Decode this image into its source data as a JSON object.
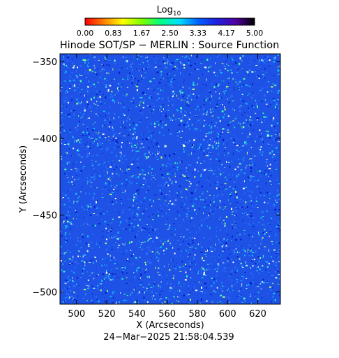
{
  "chart_data": {
    "type": "heatmap",
    "title": "Hinode SOT/SP − MERLIN : Source Function",
    "xlabel": "X (Arcseconds)",
    "ylabel": "Y (Arcseconds)",
    "timestamp": "24−Mar−2025 21:58:04.539",
    "xlim": [
      489,
      635
    ],
    "ylim": [
      -508,
      -345
    ],
    "x_ticks": [
      500,
      520,
      540,
      560,
      580,
      600,
      620
    ],
    "y_ticks": [
      -350,
      -400,
      -450,
      -500
    ],
    "x_tick_labels": [
      "500",
      "520",
      "540",
      "560",
      "580",
      "600",
      "620"
    ],
    "y_tick_labels": [
      "−350",
      "−400",
      "−450",
      "−500"
    ],
    "colorbar": {
      "label_main": "Log",
      "label_sub": "10",
      "range": [
        0.0,
        5.0
      ],
      "ticks": [
        0.0,
        0.83,
        1.67,
        2.5,
        3.33,
        4.17,
        5.0
      ],
      "tick_labels": [
        "0.00",
        "0.83",
        "1.67",
        "2.50",
        "3.33",
        "4.17",
        "5.00"
      ],
      "colors": [
        "#ff0000",
        "#ff8000",
        "#ffff00",
        "#80ff00",
        "#00ff80",
        "#00e0ff",
        "#0060ff",
        "#2020e0",
        "#5000a0",
        "#000000"
      ]
    },
    "field": {
      "typical_value": 3.8,
      "min_value": 2.4,
      "max_value": 4.4,
      "base_color": "#1e52e6",
      "speckle_colors": [
        "#ffffff",
        "#a8ffd8",
        "#40ffb0",
        "#c8ff60",
        "#10c0ff",
        "#0018c0",
        "#2e70ff"
      ]
    }
  }
}
